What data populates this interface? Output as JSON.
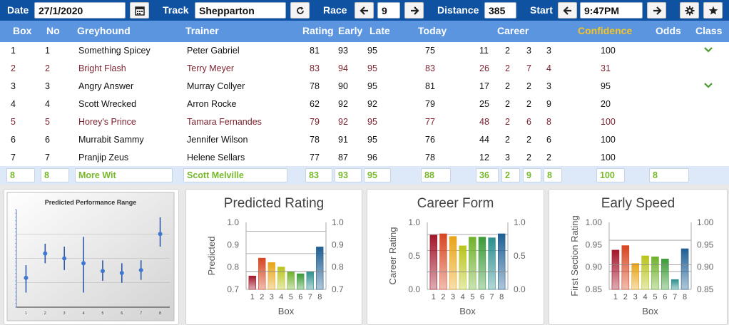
{
  "toolbar": {
    "date_label": "Date",
    "date_value": "27/1/2020",
    "track_label": "Track",
    "track_value": "Shepparton",
    "race_label": "Race",
    "race_value": "9",
    "distance_label": "Distance",
    "distance_value": "385",
    "start_label": "Start",
    "start_value": "9:47PM"
  },
  "columns": [
    "Box",
    "No",
    "Greyhound",
    "Trainer",
    "Rating",
    "Early",
    "Late",
    "Today",
    "Career",
    "Confidence",
    "Odds",
    "Class"
  ],
  "rows": [
    {
      "box": "1",
      "no": "1",
      "greyhound": "Something Spicey",
      "trainer": "Peter Gabriel",
      "rating": "81",
      "early": "93",
      "late": "95",
      "today": "75",
      "c1": "11",
      "c2": "2",
      "c3": "3",
      "c4": "3",
      "confidence": "100",
      "odds": "",
      "check": true
    },
    {
      "box": "2",
      "no": "2",
      "greyhound": "Bright Flash",
      "trainer": "Terry Meyer",
      "rating": "83",
      "early": "94",
      "late": "95",
      "today": "83",
      "c1": "26",
      "c2": "2",
      "c3": "7",
      "c4": "4",
      "confidence": "31",
      "odds": "",
      "check": false
    },
    {
      "box": "3",
      "no": "3",
      "greyhound": "Angry Answer",
      "trainer": "Murray Collyer",
      "rating": "78",
      "early": "90",
      "late": "95",
      "today": "81",
      "c1": "17",
      "c2": "2",
      "c3": "2",
      "c4": "3",
      "confidence": "95",
      "odds": "",
      "check": true
    },
    {
      "box": "4",
      "no": "4",
      "greyhound": "Scott Wrecked",
      "trainer": "Arron Rocke",
      "rating": "62",
      "early": "92",
      "late": "92",
      "today": "79",
      "c1": "25",
      "c2": "2",
      "c3": "2",
      "c4": "9",
      "confidence": "20",
      "odds": "",
      "check": false
    },
    {
      "box": "5",
      "no": "5",
      "greyhound": "Horey's Prince",
      "trainer": "Tamara Fernandes",
      "rating": "79",
      "early": "92",
      "late": "95",
      "today": "77",
      "c1": "48",
      "c2": "2",
      "c3": "6",
      "c4": "8",
      "confidence": "100",
      "odds": "",
      "check": false
    },
    {
      "box": "6",
      "no": "6",
      "greyhound": "Murrabit Sammy",
      "trainer": "Jennifer Wilson",
      "rating": "78",
      "early": "91",
      "late": "95",
      "today": "76",
      "c1": "44",
      "c2": "2",
      "c3": "2",
      "c4": "6",
      "confidence": "100",
      "odds": "",
      "check": false
    },
    {
      "box": "7",
      "no": "7",
      "greyhound": "Pranjip Zeus",
      "trainer": "Helene Sellars",
      "rating": "77",
      "early": "87",
      "late": "96",
      "today": "78",
      "c1": "12",
      "c2": "3",
      "c3": "2",
      "c4": "2",
      "confidence": "100",
      "odds": "",
      "check": false
    }
  ],
  "edit_row": {
    "box": "8",
    "no": "8",
    "greyhound": "More Wit",
    "trainer": "Scott Melville",
    "rating": "83",
    "early": "93",
    "late": "95",
    "today": "88",
    "c1": "36",
    "c2": "2",
    "c3": "9",
    "c4": "8",
    "confidence": "100",
    "odds": "8"
  },
  "colors": {
    "toolbar": "#0e52a1",
    "header": "#5b95e0",
    "confidence_header": "#f7c320",
    "alt_row_text": "#7a1f2b",
    "edit_text": "#77b82a"
  },
  "chart_data": [
    {
      "type": "scatter",
      "title": "Predicted Performance Range",
      "categories": [
        "1",
        "2",
        "3",
        "4",
        "5",
        "6",
        "7",
        "8"
      ],
      "values": [
        0.3,
        0.55,
        0.5,
        0.45,
        0.37,
        0.35,
        0.38,
        0.75
      ],
      "low": [
        0.15,
        0.45,
        0.38,
        0.15,
        0.27,
        0.25,
        0.28,
        0.62
      ],
      "high": [
        0.43,
        0.65,
        0.62,
        0.72,
        0.48,
        0.45,
        0.48,
        0.92
      ],
      "ylim": [
        0,
        1
      ]
    },
    {
      "type": "bar",
      "title": "Predicted Rating",
      "xlabel": "Box",
      "ylabel": "Predicted",
      "categories": [
        "1",
        "2",
        "3",
        "4",
        "5",
        "6",
        "7",
        "8"
      ],
      "values": [
        0.76,
        0.84,
        0.82,
        0.8,
        0.78,
        0.77,
        0.78,
        0.89
      ],
      "ylim": [
        0.7,
        1.0
      ],
      "ticks": [
        "0.7",
        "0.8",
        "0.9",
        "1.0"
      ],
      "right_ticks": [
        "0.7",
        "0.8",
        "0.9",
        "1.0"
      ],
      "gridlines": [
        0.96,
        0.86
      ],
      "refline": 0.78
    },
    {
      "type": "bar",
      "title": "Career Form",
      "xlabel": "Box",
      "ylabel": "Career Rating",
      "categories": [
        "1",
        "2",
        "3",
        "4",
        "5",
        "6",
        "7",
        "8"
      ],
      "values": [
        0.81,
        0.83,
        0.79,
        0.65,
        0.78,
        0.78,
        0.77,
        0.83
      ],
      "ylim": [
        0.0,
        1.0
      ],
      "ticks": [
        "0.0",
        "0.5",
        "1.0"
      ],
      "right_ticks": [
        "0.0",
        "0.5",
        "1.0"
      ],
      "gridlines": [
        0.82,
        0.58
      ],
      "refline": 0.26
    },
    {
      "type": "bar",
      "title": "Early Speed",
      "xlabel": "Box",
      "ylabel": "First Section Rating",
      "categories": [
        "1",
        "2",
        "3",
        "4",
        "5",
        "6",
        "7",
        "8"
      ],
      "values": [
        0.938,
        0.948,
        0.908,
        0.925,
        0.923,
        0.918,
        0.872,
        0.941
      ],
      "ylim": [
        0.85,
        1.0
      ],
      "ticks": [
        "0.85",
        "0.90",
        "0.95",
        "1.00"
      ],
      "right_ticks": [
        "0.85",
        "0.90",
        "0.95",
        "1.00"
      ],
      "gridlines": [
        0.96,
        0.89
      ],
      "refline": 0.905
    }
  ]
}
